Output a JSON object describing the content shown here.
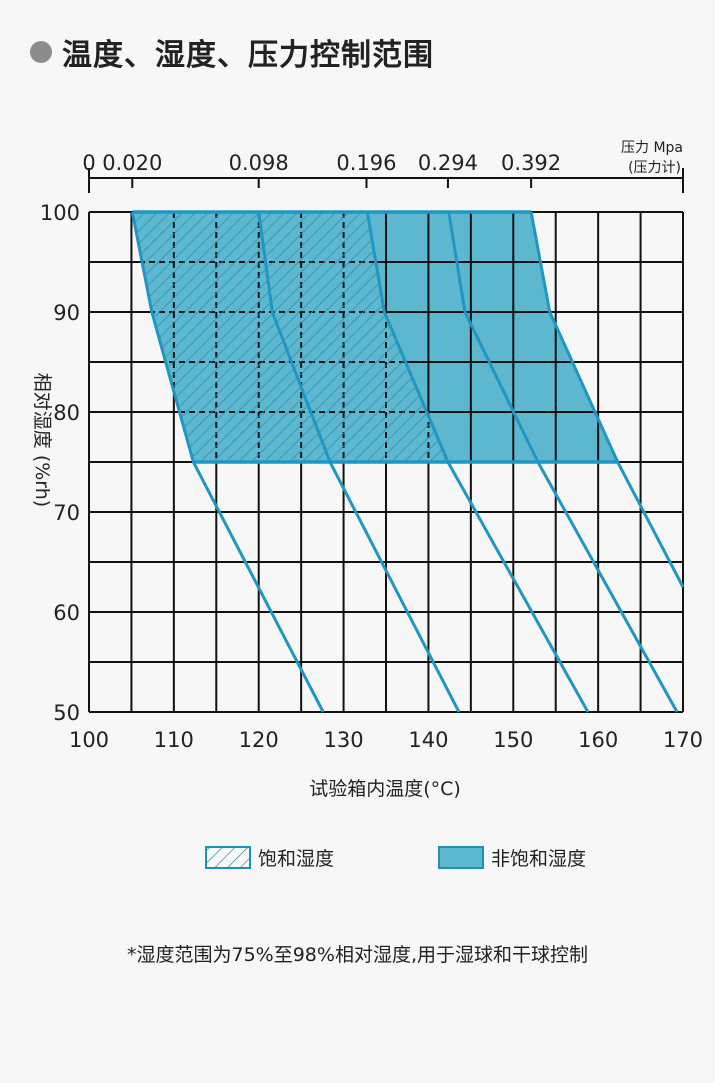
{
  "title": "温度、湿度、压力控制范围",
  "footnote": "*湿度范围为75%至98%相对湿度,用于湿球和干球控制",
  "colors": {
    "fill": "#5cb7cf",
    "line": "#2196c2",
    "grid": "#111111",
    "bullet": "#8c8c8c"
  },
  "chart_data": {
    "type": "area",
    "xlabel": "试验箱内温度(°C)",
    "ylabel": "相对湿度 (%rh)",
    "xlim": [
      100,
      170
    ],
    "ylim": [
      50,
      100
    ],
    "x_ticks": [
      "100",
      "110",
      "120",
      "130",
      "140",
      "150",
      "160",
      "170"
    ],
    "y_ticks": [
      "50",
      "60",
      "70",
      "80",
      "90",
      "100"
    ],
    "grid": true,
    "top_axis": {
      "label_line1": "压力 Mpa",
      "label_line2": "(压力计)",
      "ticks": [
        {
          "label": "0",
          "temp": 100
        },
        {
          "label": "0.020",
          "temp": 105.1
        },
        {
          "label": "0.098",
          "temp": 120.0
        },
        {
          "label": "0.196",
          "temp": 132.7
        },
        {
          "label": "0.294",
          "temp": 142.3
        },
        {
          "label": "0.392",
          "temp": 152.1
        }
      ]
    },
    "pressure_curves": [
      {
        "pressure": "0.020",
        "points": [
          [
            105.1,
            100
          ],
          [
            107.4,
            90
          ],
          [
            112.3,
            75
          ],
          [
            127.6,
            50
          ]
        ]
      },
      {
        "pressure": "0.098",
        "points": [
          [
            120.0,
            100
          ],
          [
            121.6,
            90
          ],
          [
            128.4,
            75
          ],
          [
            143.6,
            50
          ]
        ]
      },
      {
        "pressure": "0.196",
        "points": [
          [
            132.8,
            100
          ],
          [
            134.8,
            90
          ],
          [
            142.3,
            75
          ],
          [
            158.8,
            50
          ]
        ]
      },
      {
        "pressure": "0.294",
        "points": [
          [
            142.4,
            100
          ],
          [
            144.3,
            90
          ],
          [
            152.9,
            75
          ],
          [
            169.3,
            50
          ]
        ]
      },
      {
        "pressure": "0.392",
        "points": [
          [
            152.1,
            100
          ],
          [
            154.3,
            90
          ],
          [
            162.3,
            75
          ],
          [
            170,
            62.5
          ]
        ]
      }
    ],
    "regions": [
      {
        "name": "饱和湿度",
        "pattern": "hatched",
        "rh_range": [
          75,
          100
        ],
        "between_curves": [
          "0.020",
          "0.196"
        ]
      },
      {
        "name": "非饱和湿度",
        "pattern": "solid",
        "rh_range": [
          75,
          100
        ],
        "between_curves": [
          "0.196",
          "0.392"
        ]
      }
    ],
    "legend_position": "bottom"
  }
}
